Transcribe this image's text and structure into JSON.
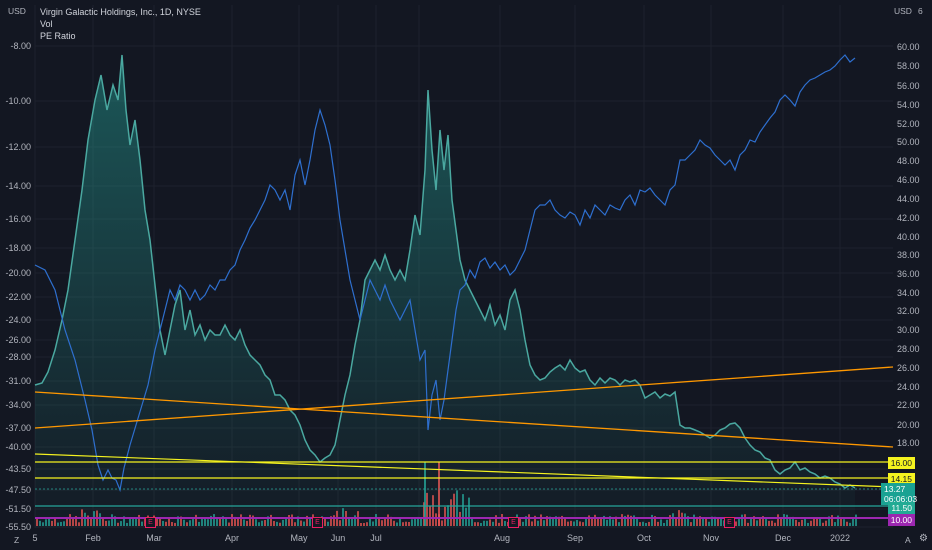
{
  "legend": {
    "title": "Virgin Galactic Holdings, Inc., 1D, NYSE",
    "vol": "Vol",
    "pe": "PE Ratio"
  },
  "corners": {
    "top_left": "USD",
    "top_right": "USD",
    "top_right_num": "6",
    "bottom_left": "Z",
    "bottom_a": "A",
    "bottom_right_icon": "gear-icon"
  },
  "left_axis_ticks": [
    "-8.00",
    "-10.00",
    "-12.00",
    "-14.00",
    "-16.00",
    "-18.00",
    "-20.00",
    "-22.00",
    "-24.00",
    "-26.00",
    "-28.00",
    "-31.00",
    "-34.00",
    "-37.00",
    "-40.00",
    "-43.50",
    "-47.50",
    "-51.50",
    "-55.50"
  ],
  "right_axis_ticks": [
    "60.00",
    "58.00",
    "56.00",
    "54.00",
    "52.00",
    "50.00",
    "48.00",
    "46.00",
    "44.00",
    "42.00",
    "40.00",
    "38.00",
    "36.00",
    "34.00",
    "32.00",
    "30.00",
    "28.00",
    "26.00",
    "24.00",
    "22.00",
    "20.00",
    "18.00"
  ],
  "x_labels": [
    "5",
    "Feb",
    "Mar",
    "Apr",
    "May",
    "Jun",
    "Jul",
    "Aug",
    "Sep",
    "Oct",
    "Nov",
    "Dec",
    "2022"
  ],
  "badges": {
    "b1": "16.00",
    "b2": "14.15",
    "price": "13.27",
    "countdown": "06:06:03",
    "b3": "11.50",
    "b4": "10.00"
  },
  "earnings_label": "E",
  "colors": {
    "background": "#131722",
    "price_line": "#4aa8a0",
    "pe_line": "#2e6fcf",
    "orange_line": "#ff9800",
    "yellow_line": "#f5f31f",
    "green_line": "#26a69a",
    "purple_line": "#9c27b0",
    "vol_up": "#26a69a",
    "vol_down": "#ef5350"
  }
}
